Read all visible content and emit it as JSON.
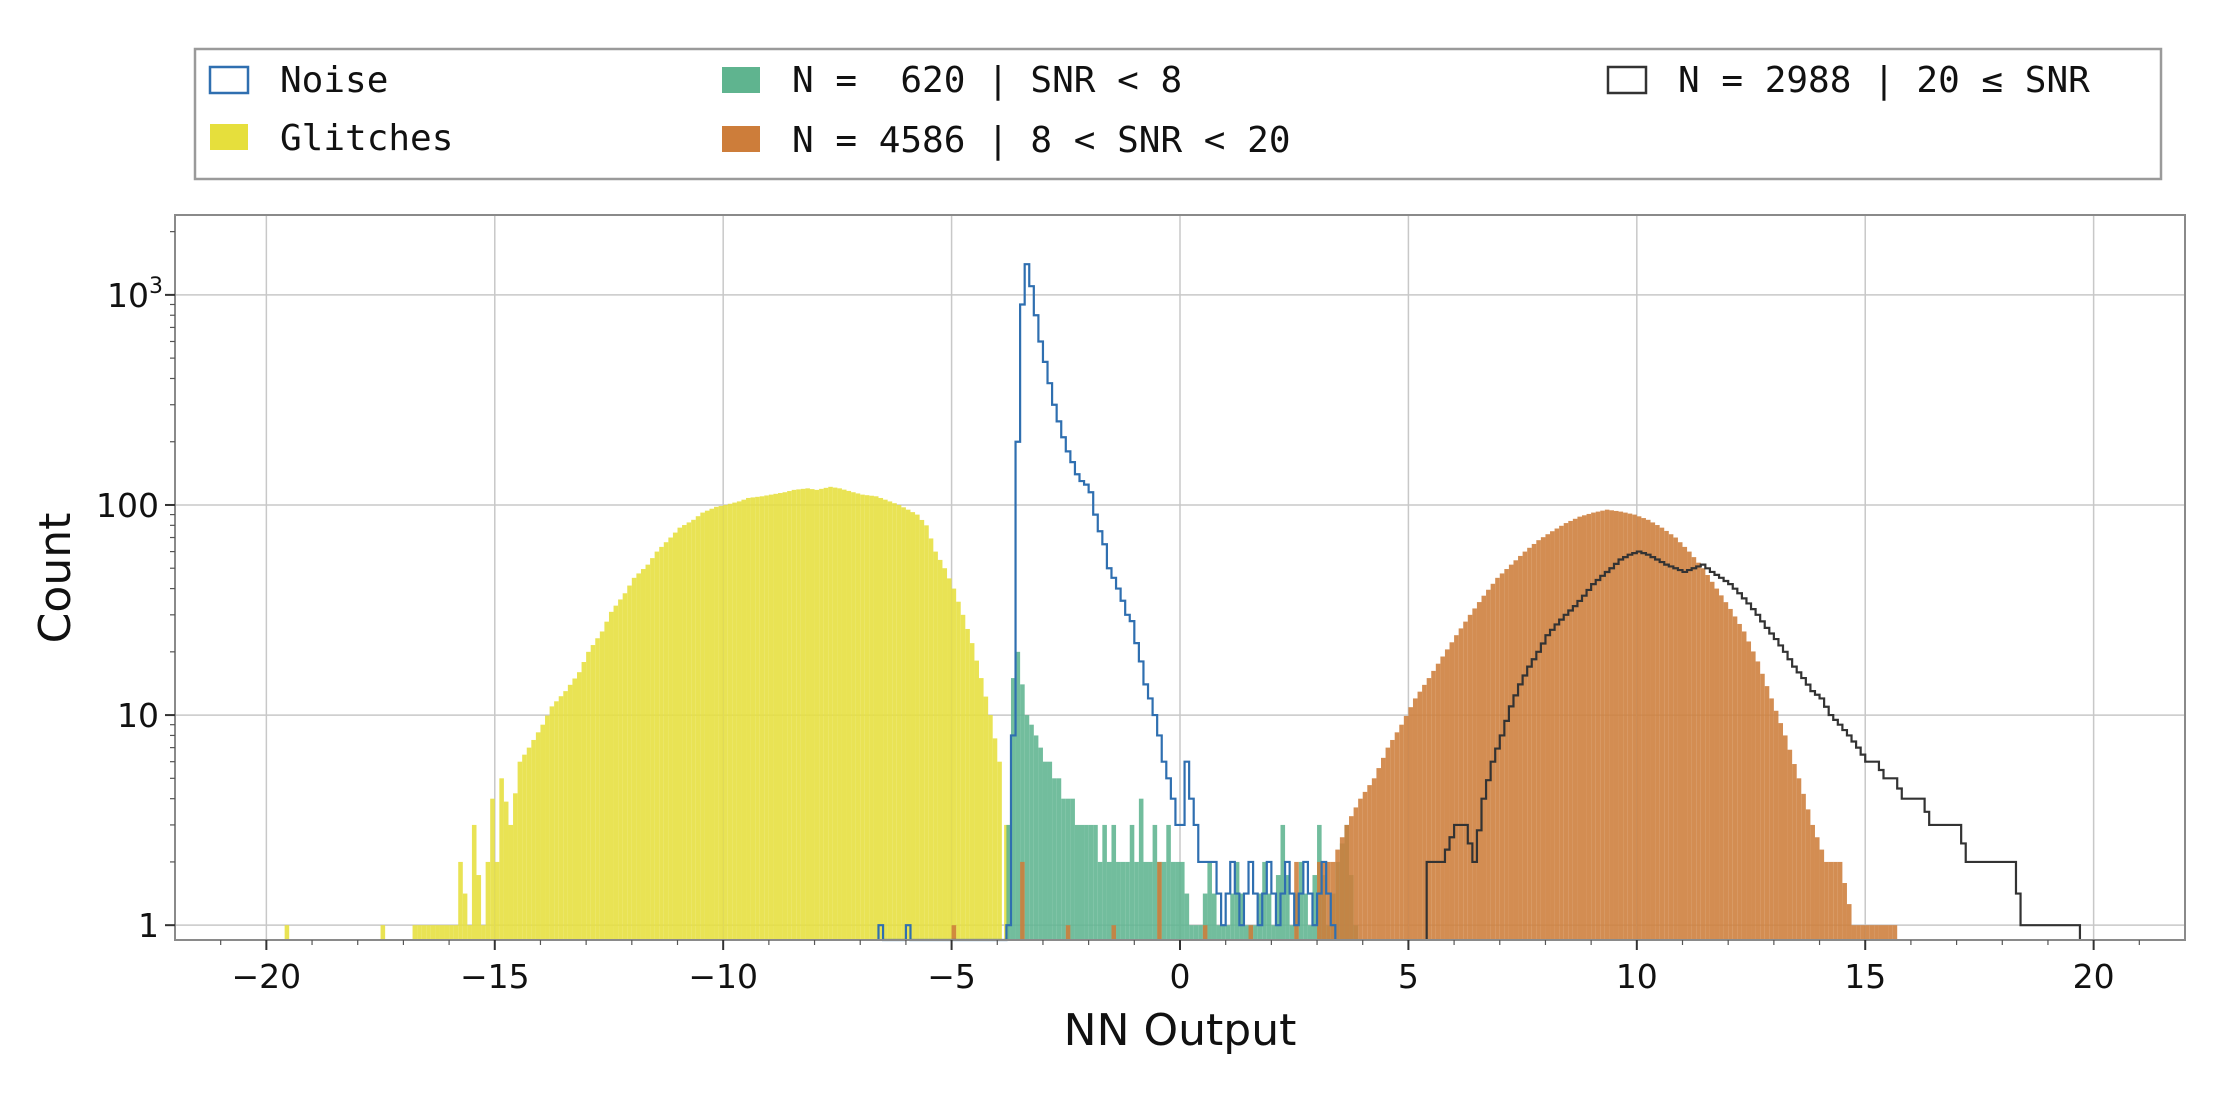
{
  "chart_data": {
    "type": "histogram",
    "title": "",
    "xlabel": "NN Output",
    "ylabel": "Count",
    "xlim": [
      -22,
      22
    ],
    "ylim": [
      0.85,
      2400
    ],
    "yscale": "log",
    "grid": true,
    "legend_location": "top, outside plot, 3 columns",
    "x_ticks": [
      -20,
      -15,
      -10,
      -5,
      0,
      5,
      10,
      15,
      20
    ],
    "x_tick_labels": [
      "−20",
      "−15",
      "−10",
      "−5",
      "0",
      "5",
      "10",
      "15",
      "20"
    ],
    "y_ticks": [
      1,
      10,
      100,
      1000
    ],
    "y_tick_labels": [
      "1",
      "10",
      "100",
      "10³"
    ],
    "bin_width": 0.1,
    "legend": [
      {
        "label": "Noise",
        "style": "step",
        "color": "#2f6fb0"
      },
      {
        "label": "Glitches",
        "style": "filled",
        "color": "#e6df3c"
      },
      {
        "label": "N =  620 | SNR < 8",
        "style": "filled",
        "color": "#5fb48f"
      },
      {
        "label": "N = 4586 | 8 < SNR < 20",
        "style": "filled",
        "color": "#cd7d3a"
      },
      {
        "label": "N = 2988 | 20 ≤ SNR",
        "style": "step",
        "color": "#333333"
      }
    ],
    "series": [
      {
        "name": "Glitches",
        "style": "filled",
        "color": "#e6df3c",
        "points": [
          [
            -19.6,
            1
          ],
          [
            -17.5,
            1
          ],
          [
            -16.8,
            1
          ],
          [
            -16.6,
            1
          ],
          [
            -16.3,
            1
          ],
          [
            -16.1,
            1
          ],
          [
            -15.9,
            1
          ],
          [
            -15.8,
            2
          ],
          [
            -15.6,
            1
          ],
          [
            -15.5,
            3
          ],
          [
            -15.3,
            1
          ],
          [
            -15.1,
            4
          ],
          [
            -15.0,
            2
          ],
          [
            -14.9,
            5
          ],
          [
            -14.7,
            3
          ],
          [
            -14.5,
            6
          ],
          [
            -14.3,
            7
          ],
          [
            -14.0,
            9
          ],
          [
            -13.8,
            11
          ],
          [
            -13.5,
            13
          ],
          [
            -13.2,
            16
          ],
          [
            -13.0,
            20
          ],
          [
            -12.7,
            25
          ],
          [
            -12.5,
            31
          ],
          [
            -12.2,
            38
          ],
          [
            -12.0,
            45
          ],
          [
            -11.7,
            52
          ],
          [
            -11.5,
            60
          ],
          [
            -11.2,
            70
          ],
          [
            -11.0,
            78
          ],
          [
            -10.7,
            85
          ],
          [
            -10.5,
            92
          ],
          [
            -10.2,
            98
          ],
          [
            -10.0,
            100
          ],
          [
            -9.7,
            104
          ],
          [
            -9.5,
            108
          ],
          [
            -9.2,
            110
          ],
          [
            -9.0,
            112
          ],
          [
            -8.7,
            115
          ],
          [
            -8.5,
            118
          ],
          [
            -8.2,
            120
          ],
          [
            -8.0,
            118
          ],
          [
            -7.7,
            122
          ],
          [
            -7.5,
            120
          ],
          [
            -7.2,
            115
          ],
          [
            -7.0,
            112
          ],
          [
            -6.7,
            110
          ],
          [
            -6.5,
            106
          ],
          [
            -6.2,
            100
          ],
          [
            -6.0,
            95
          ],
          [
            -5.8,
            90
          ],
          [
            -5.6,
            80
          ],
          [
            -5.4,
            60
          ],
          [
            -5.2,
            50
          ],
          [
            -5.0,
            40
          ],
          [
            -4.8,
            30
          ],
          [
            -4.6,
            22
          ],
          [
            -4.4,
            15
          ],
          [
            -4.2,
            10
          ],
          [
            -4.0,
            6
          ],
          [
            -3.85,
            3
          ]
        ]
      },
      {
        "name": "N =  620 | SNR < 8",
        "style": "filled",
        "color": "#5fb48f",
        "points": [
          [
            -3.8,
            3
          ],
          [
            -3.7,
            15
          ],
          [
            -3.6,
            20
          ],
          [
            -3.5,
            14
          ],
          [
            -3.4,
            10
          ],
          [
            -3.3,
            9
          ],
          [
            -3.2,
            8
          ],
          [
            -3.1,
            7
          ],
          [
            -3.0,
            6
          ],
          [
            -2.9,
            6
          ],
          [
            -2.8,
            5
          ],
          [
            -2.7,
            5
          ],
          [
            -2.6,
            4
          ],
          [
            -2.5,
            4
          ],
          [
            -2.4,
            4
          ],
          [
            -2.3,
            3
          ],
          [
            -2.2,
            3
          ],
          [
            -2.1,
            3
          ],
          [
            -2.0,
            3
          ],
          [
            -1.9,
            3
          ],
          [
            -1.8,
            2
          ],
          [
            -1.7,
            3
          ],
          [
            -1.6,
            2
          ],
          [
            -1.5,
            3
          ],
          [
            -1.4,
            2
          ],
          [
            -1.3,
            2
          ],
          [
            -1.2,
            2
          ],
          [
            -1.1,
            3
          ],
          [
            -1.0,
            2
          ],
          [
            -0.9,
            4
          ],
          [
            -0.8,
            2
          ],
          [
            -0.7,
            2
          ],
          [
            -0.6,
            3
          ],
          [
            -0.5,
            2
          ],
          [
            -0.4,
            2
          ],
          [
            -0.3,
            3
          ],
          [
            -0.2,
            2
          ],
          [
            0.0,
            2
          ],
          [
            0.2,
            1
          ],
          [
            0.4,
            1
          ],
          [
            0.6,
            2
          ],
          [
            0.8,
            1
          ],
          [
            1.0,
            1
          ],
          [
            1.2,
            2
          ],
          [
            1.4,
            1
          ],
          [
            1.6,
            1
          ],
          [
            1.8,
            2
          ],
          [
            2.0,
            1
          ],
          [
            2.2,
            3
          ],
          [
            2.4,
            1
          ],
          [
            2.6,
            2
          ],
          [
            2.8,
            1
          ],
          [
            3.0,
            3
          ],
          [
            3.2,
            1
          ],
          [
            3.4,
            2
          ],
          [
            3.6,
            3
          ],
          [
            3.8,
            1
          ]
        ]
      },
      {
        "name": "N = 4586 | 8 < SNR < 20",
        "style": "filled",
        "color": "#cd7d3a",
        "points": [
          [
            -5.0,
            1
          ],
          [
            -3.5,
            2
          ],
          [
            -2.5,
            1
          ],
          [
            -1.5,
            1
          ],
          [
            -0.5,
            2
          ],
          [
            0.5,
            1
          ],
          [
            1.5,
            1
          ],
          [
            2.5,
            2
          ],
          [
            3.0,
            2
          ],
          [
            3.3,
            2
          ],
          [
            3.6,
            3
          ],
          [
            3.9,
            4
          ],
          [
            4.2,
            5
          ],
          [
            4.5,
            7
          ],
          [
            4.8,
            9
          ],
          [
            5.1,
            12
          ],
          [
            5.4,
            15
          ],
          [
            5.7,
            19
          ],
          [
            6.0,
            24
          ],
          [
            6.3,
            30
          ],
          [
            6.6,
            37
          ],
          [
            6.9,
            45
          ],
          [
            7.2,
            52
          ],
          [
            7.5,
            60
          ],
          [
            7.8,
            68
          ],
          [
            8.1,
            75
          ],
          [
            8.4,
            82
          ],
          [
            8.7,
            88
          ],
          [
            9.0,
            92
          ],
          [
            9.3,
            95
          ],
          [
            9.6,
            93
          ],
          [
            9.9,
            90
          ],
          [
            10.2,
            85
          ],
          [
            10.5,
            78
          ],
          [
            10.8,
            70
          ],
          [
            11.1,
            60
          ],
          [
            11.4,
            50
          ],
          [
            11.7,
            40
          ],
          [
            12.0,
            32
          ],
          [
            12.3,
            25
          ],
          [
            12.6,
            18
          ],
          [
            12.9,
            12
          ],
          [
            13.2,
            8
          ],
          [
            13.5,
            5
          ],
          [
            13.8,
            3
          ],
          [
            14.1,
            2
          ],
          [
            14.4,
            2
          ],
          [
            14.7,
            1
          ],
          [
            15.0,
            1
          ],
          [
            15.3,
            1
          ],
          [
            15.6,
            1
          ]
        ]
      },
      {
        "name": "Noise",
        "style": "step",
        "color": "#2f6fb0",
        "points": [
          [
            -6.6,
            1
          ],
          [
            -6.0,
            1
          ],
          [
            -3.8,
            1
          ],
          [
            -3.7,
            8
          ],
          [
            -3.6,
            200
          ],
          [
            -3.5,
            900
          ],
          [
            -3.4,
            1400
          ],
          [
            -3.3,
            1100
          ],
          [
            -3.2,
            800
          ],
          [
            -3.1,
            600
          ],
          [
            -3.0,
            480
          ],
          [
            -2.9,
            380
          ],
          [
            -2.8,
            300
          ],
          [
            -2.7,
            250
          ],
          [
            -2.6,
            210
          ],
          [
            -2.5,
            180
          ],
          [
            -2.4,
            160
          ],
          [
            -2.3,
            140
          ],
          [
            -2.2,
            130
          ],
          [
            -2.1,
            125
          ],
          [
            -2.0,
            115
          ],
          [
            -1.9,
            90
          ],
          [
            -1.8,
            75
          ],
          [
            -1.7,
            65
          ],
          [
            -1.6,
            50
          ],
          [
            -1.5,
            45
          ],
          [
            -1.4,
            40
          ],
          [
            -1.3,
            35
          ],
          [
            -1.2,
            30
          ],
          [
            -1.1,
            28
          ],
          [
            -1.0,
            22
          ],
          [
            -0.9,
            18
          ],
          [
            -0.8,
            14
          ],
          [
            -0.7,
            12
          ],
          [
            -0.6,
            10
          ],
          [
            -0.5,
            8
          ],
          [
            -0.4,
            6
          ],
          [
            -0.3,
            5
          ],
          [
            -0.2,
            4
          ],
          [
            -0.1,
            3
          ],
          [
            0.0,
            3
          ],
          [
            0.1,
            6
          ],
          [
            0.2,
            4
          ],
          [
            0.3,
            3
          ],
          [
            0.4,
            2
          ],
          [
            0.5,
            2
          ],
          [
            0.7,
            2
          ],
          [
            0.9,
            1
          ],
          [
            1.1,
            2
          ],
          [
            1.3,
            1
          ],
          [
            1.5,
            2
          ],
          [
            1.7,
            1
          ],
          [
            1.9,
            2
          ],
          [
            2.1,
            1
          ],
          [
            2.3,
            2
          ],
          [
            2.5,
            1
          ],
          [
            2.7,
            2
          ],
          [
            2.9,
            1
          ],
          [
            3.1,
            2
          ],
          [
            3.3,
            1
          ]
        ]
      },
      {
        "name": "N = 2988 | 20 ≤ SNR",
        "style": "step",
        "color": "#333333",
        "points": [
          [
            5.4,
            2
          ],
          [
            5.7,
            2
          ],
          [
            6.0,
            3
          ],
          [
            6.2,
            3
          ],
          [
            6.4,
            2
          ],
          [
            6.6,
            4
          ],
          [
            6.8,
            6
          ],
          [
            7.0,
            8
          ],
          [
            7.2,
            11
          ],
          [
            7.4,
            14
          ],
          [
            7.6,
            17
          ],
          [
            7.8,
            20
          ],
          [
            8.0,
            24
          ],
          [
            8.2,
            27
          ],
          [
            8.4,
            30
          ],
          [
            8.6,
            33
          ],
          [
            8.8,
            37
          ],
          [
            9.0,
            42
          ],
          [
            9.2,
            46
          ],
          [
            9.4,
            50
          ],
          [
            9.6,
            55
          ],
          [
            9.8,
            58
          ],
          [
            10.0,
            60
          ],
          [
            10.2,
            58
          ],
          [
            10.4,
            55
          ],
          [
            10.6,
            52
          ],
          [
            10.8,
            50
          ],
          [
            11.0,
            48
          ],
          [
            11.2,
            50
          ],
          [
            11.4,
            52
          ],
          [
            11.6,
            48
          ],
          [
            11.8,
            45
          ],
          [
            12.0,
            42
          ],
          [
            12.2,
            38
          ],
          [
            12.4,
            34
          ],
          [
            12.6,
            30
          ],
          [
            12.8,
            26
          ],
          [
            13.0,
            23
          ],
          [
            13.2,
            20
          ],
          [
            13.4,
            17
          ],
          [
            13.6,
            15
          ],
          [
            13.8,
            13
          ],
          [
            14.0,
            12
          ],
          [
            14.2,
            10
          ],
          [
            14.4,
            9
          ],
          [
            14.6,
            8
          ],
          [
            14.8,
            7
          ],
          [
            15.0,
            6
          ],
          [
            15.2,
            6
          ],
          [
            15.4,
            5
          ],
          [
            15.6,
            5
          ],
          [
            15.8,
            4
          ],
          [
            16.0,
            4
          ],
          [
            16.2,
            4
          ],
          [
            16.4,
            3
          ],
          [
            16.6,
            3
          ],
          [
            16.8,
            3
          ],
          [
            17.0,
            3
          ],
          [
            17.2,
            2
          ],
          [
            17.4,
            2
          ],
          [
            17.6,
            2
          ],
          [
            17.8,
            2
          ],
          [
            18.0,
            2
          ],
          [
            18.2,
            2
          ],
          [
            18.4,
            1
          ],
          [
            18.6,
            1
          ],
          [
            18.8,
            1
          ],
          [
            19.0,
            1
          ],
          [
            19.2,
            1
          ],
          [
            19.4,
            1
          ],
          [
            19.6,
            1
          ]
        ]
      }
    ]
  }
}
